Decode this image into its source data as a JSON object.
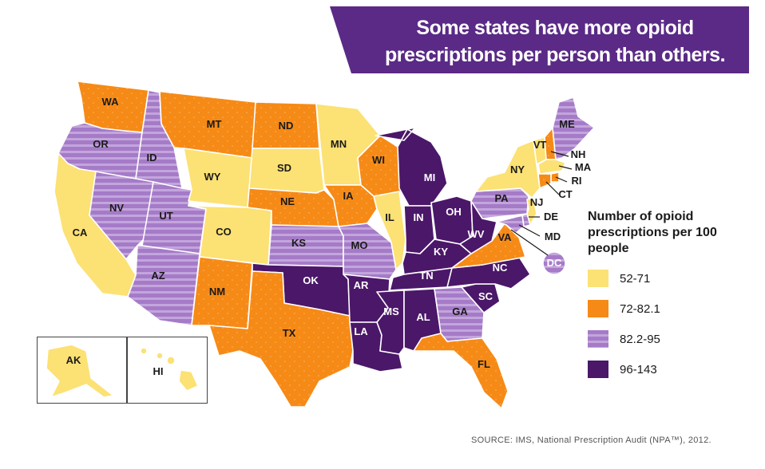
{
  "title": "Some states have more opioid prescriptions per person than others.",
  "legend": {
    "title": "Number of opioid prescriptions per 100 people",
    "items": [
      {
        "label": "52-71",
        "color": "#fce174",
        "pattern": "solid"
      },
      {
        "label": "72-82.1",
        "color": "#f68a16",
        "pattern": "solid"
      },
      {
        "label": "82.2-95",
        "color": "#a57bc8",
        "pattern": "stripes"
      },
      {
        "label": "96-143",
        "color": "#4b1769",
        "pattern": "solid"
      }
    ]
  },
  "source": "SOURCE: IMS, National Prescription Audit (NPA™), 2012.",
  "colors": {
    "banner": "#5a2a86",
    "yellow": "#fce174",
    "orange": "#f68a16",
    "lavender": "#a57bc8",
    "dark_purple": "#4b1769"
  },
  "states": [
    {
      "abbr": "WA",
      "category": "72-82.1"
    },
    {
      "abbr": "OR",
      "category": "82.2-95"
    },
    {
      "abbr": "CA",
      "category": "52-71"
    },
    {
      "abbr": "ID",
      "category": "82.2-95"
    },
    {
      "abbr": "NV",
      "category": "82.2-95"
    },
    {
      "abbr": "UT",
      "category": "82.2-95"
    },
    {
      "abbr": "AZ",
      "category": "82.2-95"
    },
    {
      "abbr": "MT",
      "category": "72-82.1"
    },
    {
      "abbr": "WY",
      "category": "52-71"
    },
    {
      "abbr": "CO",
      "category": "52-71"
    },
    {
      "abbr": "NM",
      "category": "72-82.1"
    },
    {
      "abbr": "ND",
      "category": "72-82.1"
    },
    {
      "abbr": "SD",
      "category": "52-71"
    },
    {
      "abbr": "NE",
      "category": "72-82.1"
    },
    {
      "abbr": "KS",
      "category": "82.2-95"
    },
    {
      "abbr": "OK",
      "category": "96-143"
    },
    {
      "abbr": "TX",
      "category": "72-82.1"
    },
    {
      "abbr": "MN",
      "category": "52-71"
    },
    {
      "abbr": "IA",
      "category": "72-82.1"
    },
    {
      "abbr": "MO",
      "category": "82.2-95"
    },
    {
      "abbr": "AR",
      "category": "96-143"
    },
    {
      "abbr": "LA",
      "category": "96-143"
    },
    {
      "abbr": "WI",
      "category": "72-82.1"
    },
    {
      "abbr": "IL",
      "category": "52-71"
    },
    {
      "abbr": "MI",
      "category": "96-143"
    },
    {
      "abbr": "IN",
      "category": "96-143"
    },
    {
      "abbr": "OH",
      "category": "96-143"
    },
    {
      "abbr": "KY",
      "category": "96-143"
    },
    {
      "abbr": "TN",
      "category": "96-143"
    },
    {
      "abbr": "MS",
      "category": "96-143"
    },
    {
      "abbr": "AL",
      "category": "96-143"
    },
    {
      "abbr": "GA",
      "category": "82.2-95"
    },
    {
      "abbr": "FL",
      "category": "72-82.1"
    },
    {
      "abbr": "SC",
      "category": "96-143"
    },
    {
      "abbr": "NC",
      "category": "96-143"
    },
    {
      "abbr": "VA",
      "category": "72-82.1"
    },
    {
      "abbr": "WV",
      "category": "96-143"
    },
    {
      "abbr": "PA",
      "category": "82.2-95"
    },
    {
      "abbr": "NY",
      "category": "52-71"
    },
    {
      "abbr": "VT",
      "category": "52-71"
    },
    {
      "abbr": "NH",
      "category": "72-82.1"
    },
    {
      "abbr": "ME",
      "category": "82.2-95"
    },
    {
      "abbr": "MA",
      "category": "52-71"
    },
    {
      "abbr": "RI",
      "category": "72-82.1"
    },
    {
      "abbr": "CT",
      "category": "72-82.1"
    },
    {
      "abbr": "NJ",
      "category": "52-71"
    },
    {
      "abbr": "DE",
      "category": "82.2-95"
    },
    {
      "abbr": "MD",
      "category": "82.2-95"
    },
    {
      "abbr": "DC",
      "category": "82.2-95"
    },
    {
      "abbr": "AK",
      "category": "52-71"
    },
    {
      "abbr": "HI",
      "category": "52-71"
    }
  ]
}
